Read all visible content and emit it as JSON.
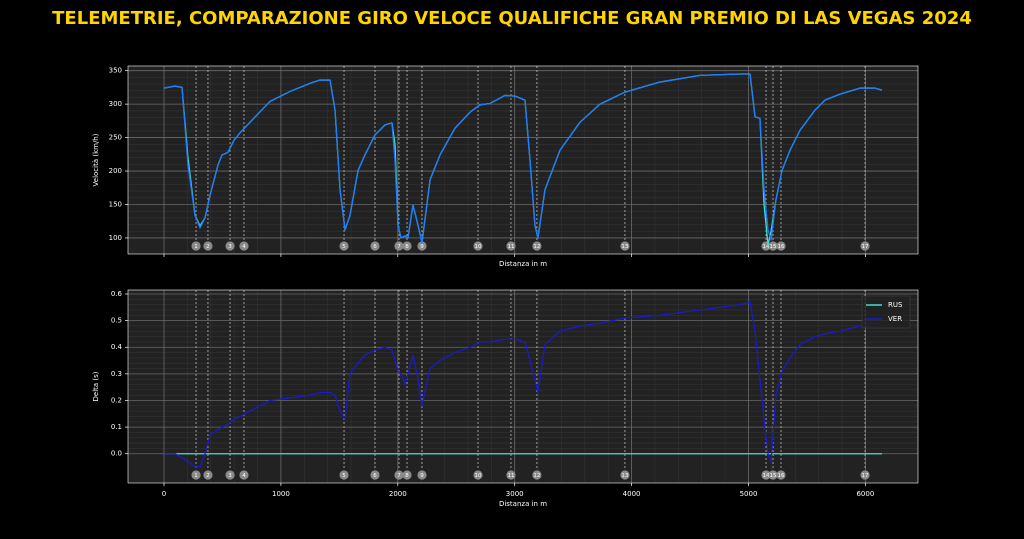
{
  "title": "TELEMETRIE, COMPARAZIONE GIRO VELOCE QUALIFICHE GRAN PREMIO DI LAS VEGAS 2024",
  "corners": {
    "numbers": [
      1,
      2,
      3,
      4,
      5,
      6,
      7,
      8,
      9,
      10,
      11,
      12,
      13,
      14,
      15,
      16,
      17
    ],
    "distances": [
      274,
      376,
      565,
      684,
      1540,
      1805,
      2010,
      2079,
      2207,
      2686,
      2968,
      3190,
      3943,
      5150,
      5210,
      5278,
      5997
    ]
  },
  "chart_data": [
    {
      "type": "line",
      "ylabel": "Velocità (km/h)",
      "xlabel": "Distanza in m",
      "xlim": [
        -308,
        6450
      ],
      "ylim": [
        76,
        357
      ],
      "xticks": [
        0,
        1000,
        2000,
        3000,
        4000,
        5000,
        6000
      ],
      "show_xtick_labels": false,
      "yticks": [
        100,
        150,
        200,
        250,
        300,
        350
      ],
      "grid": true,
      "legend": false,
      "x": [
        0,
        94,
        154,
        205,
        265,
        308,
        351,
        394,
        462,
        496,
        547,
        599,
        650,
        736,
        907,
        1078,
        1249,
        1334,
        1420,
        1463,
        1506,
        1549,
        1591,
        1660,
        1719,
        1805,
        1891,
        1950,
        1976,
        2002,
        2027,
        2062,
        2087,
        2130,
        2173,
        2207,
        2276,
        2361,
        2489,
        2618,
        2703,
        2789,
        2917,
        3003,
        3088,
        3131,
        3173,
        3199,
        3259,
        3387,
        3559,
        3730,
        3944,
        4243,
        4585,
        4927,
        5013,
        5056,
        5098,
        5133,
        5167,
        5193,
        5235,
        5287,
        5355,
        5441,
        5569,
        5654,
        5783,
        5954,
        6082,
        6142
      ],
      "series": [
        {
          "name": "RUS",
          "color": "#40e0d0",
          "values": [
            324,
            327,
            325,
            220,
            134,
            118,
            130,
            164,
            209,
            224,
            228,
            246,
            257,
            273,
            304,
            319,
            331,
            336,
            336,
            291,
            172,
            112,
            134,
            201,
            224,
            254,
            269,
            272,
            240,
            119,
            100,
            103,
            100,
            149,
            119,
            93,
            187,
            224,
            264,
            288,
            299,
            301,
            313,
            312,
            306,
            216,
            119,
            100,
            172,
            231,
            273,
            300,
            318,
            333,
            343,
            345,
            345,
            281,
            279,
            150,
            90,
            110,
            157,
            201,
            231,
            261,
            291,
            306,
            315,
            324,
            324,
            321
          ]
        },
        {
          "name": "VER",
          "color": "#1e7bff",
          "values": [
            324,
            327,
            325,
            209,
            134,
            115,
            130,
            164,
            209,
            224,
            228,
            246,
            257,
            273,
            304,
            319,
            331,
            336,
            336,
            291,
            172,
            112,
            134,
            201,
            224,
            254,
            269,
            272,
            216,
            119,
            100,
            103,
            100,
            149,
            119,
            93,
            187,
            224,
            264,
            288,
            299,
            301,
            313,
            312,
            306,
            216,
            119,
            100,
            172,
            231,
            273,
            300,
            318,
            333,
            343,
            345,
            345,
            281,
            279,
            172,
            112,
            97,
            157,
            201,
            231,
            261,
            291,
            306,
            315,
            324,
            324,
            321
          ]
        }
      ]
    },
    {
      "type": "line",
      "ylabel": "Delta (s)",
      "xlabel": "Distanza in m",
      "xlim": [
        -308,
        6450
      ],
      "ylim": [
        -0.11,
        0.615
      ],
      "xticks": [
        0,
        1000,
        2000,
        3000,
        4000,
        5000,
        6000
      ],
      "show_xtick_labels": true,
      "yticks": [
        {
          "value": 0,
          "label": "0.0"
        },
        0.1,
        0.2,
        0.3,
        0.4,
        0.5,
        0.6
      ],
      "grid": true,
      "legend": "upper right",
      "x": [
        0,
        94,
        154,
        205,
        265,
        308,
        351,
        394,
        462,
        496,
        547,
        599,
        650,
        736,
        907,
        1078,
        1249,
        1334,
        1420,
        1463,
        1506,
        1549,
        1591,
        1660,
        1719,
        1805,
        1891,
        1950,
        1976,
        2002,
        2027,
        2062,
        2087,
        2130,
        2173,
        2207,
        2276,
        2361,
        2489,
        2618,
        2703,
        2789,
        2917,
        3003,
        3088,
        3131,
        3173,
        3199,
        3259,
        3387,
        3559,
        3730,
        3944,
        4243,
        4585,
        4927,
        5013,
        5056,
        5098,
        5133,
        5167,
        5193,
        5235,
        5287,
        5355,
        5441,
        5569,
        5654,
        5783,
        5954,
        6082,
        6142
      ],
      "series": [
        {
          "name": "RUS",
          "color": "#40e0d0",
          "values": [
            0,
            0,
            0,
            0,
            0,
            0,
            0,
            0,
            0,
            0,
            0,
            0,
            0,
            0,
            0,
            0,
            0,
            0,
            0,
            0,
            0,
            0,
            0,
            0,
            0,
            0,
            0,
            0,
            0,
            0,
            0,
            0,
            0,
            0,
            0,
            0,
            0,
            0,
            0,
            0,
            0,
            0,
            0,
            0,
            0,
            0,
            0,
            0,
            0,
            0,
            0,
            0,
            0,
            0,
            0,
            0,
            0,
            0,
            0,
            0,
            0,
            0,
            0,
            0,
            0,
            0,
            0,
            0,
            0,
            0,
            0,
            0
          ]
        },
        {
          "name": "VER",
          "color": "#1a1acd",
          "values": [
            0,
            0,
            -0.015,
            -0.03,
            -0.05,
            -0.05,
            0,
            0.07,
            0.09,
            0.1,
            0.11,
            0.13,
            0.14,
            0.16,
            0.2,
            0.21,
            0.22,
            0.23,
            0.23,
            0.22,
            0.16,
            0.13,
            0.3,
            0.34,
            0.37,
            0.39,
            0.4,
            0.39,
            0.35,
            0.31,
            0.3,
            0.26,
            0.3,
            0.37,
            0.28,
            0.18,
            0.32,
            0.35,
            0.38,
            0.4,
            0.42,
            0.42,
            0.43,
            0.43,
            0.42,
            0.35,
            0.28,
            0.23,
            0.41,
            0.46,
            0.48,
            0.49,
            0.51,
            0.52,
            0.54,
            0.56,
            0.57,
            0.46,
            0.28,
            0.13,
            0,
            -0.03,
            0.22,
            0.31,
            0.36,
            0.41,
            0.44,
            0.45,
            0.46,
            0.48,
            0.49,
            0.49
          ]
        }
      ]
    }
  ]
}
